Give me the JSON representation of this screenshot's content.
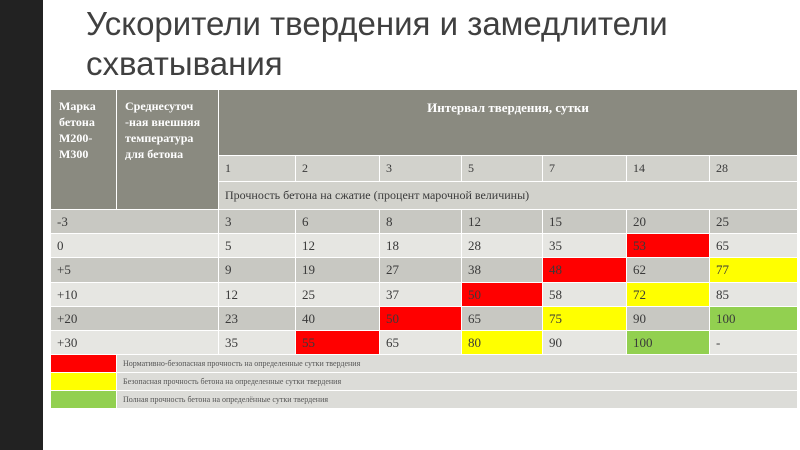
{
  "title": "Ускорители твердения и замедлители схватывания",
  "header": {
    "grade": "Марка бетона М200-М300",
    "temp": "Среднесуточ -ная внешняя температура для бетона",
    "interval": "Интервал твердения, сутки",
    "days": [
      "1",
      "2",
      "3",
      "5",
      "7",
      "14",
      "28"
    ],
    "strength_label": "Прочность бетона на сжатие (процент марочной величины)"
  },
  "rows": [
    {
      "temp": "-3",
      "values": [
        "3",
        "6",
        "8",
        "12",
        "15",
        "20",
        "25"
      ]
    },
    {
      "temp": "0",
      "values": [
        "5",
        "12",
        "18",
        "28",
        "35",
        "53",
        "65"
      ]
    },
    {
      "temp": "+5",
      "values": [
        "9",
        "19",
        "27",
        "38",
        "48",
        "62",
        "77"
      ]
    },
    {
      "temp": "+10",
      "values": [
        "12",
        "25",
        "37",
        "50",
        "58",
        "72",
        "85"
      ]
    },
    {
      "temp": "+20",
      "values": [
        "23",
        "40",
        "50",
        "65",
        "75",
        "90",
        "100"
      ]
    },
    {
      "temp": "+30",
      "values": [
        "35",
        "55",
        "65",
        "80",
        "90",
        "100",
        "-"
      ]
    }
  ],
  "legend": [
    {
      "color": "#ff0000",
      "text": "Нормативно-безопасная прочность на определенные сутки твердения"
    },
    {
      "color": "#ffff00",
      "text": "Безопасная прочность бетона на определенные сутки твердения"
    },
    {
      "color": "#92d050",
      "text": "Полная прочность бетона на определённые сутки твердения"
    }
  ]
}
